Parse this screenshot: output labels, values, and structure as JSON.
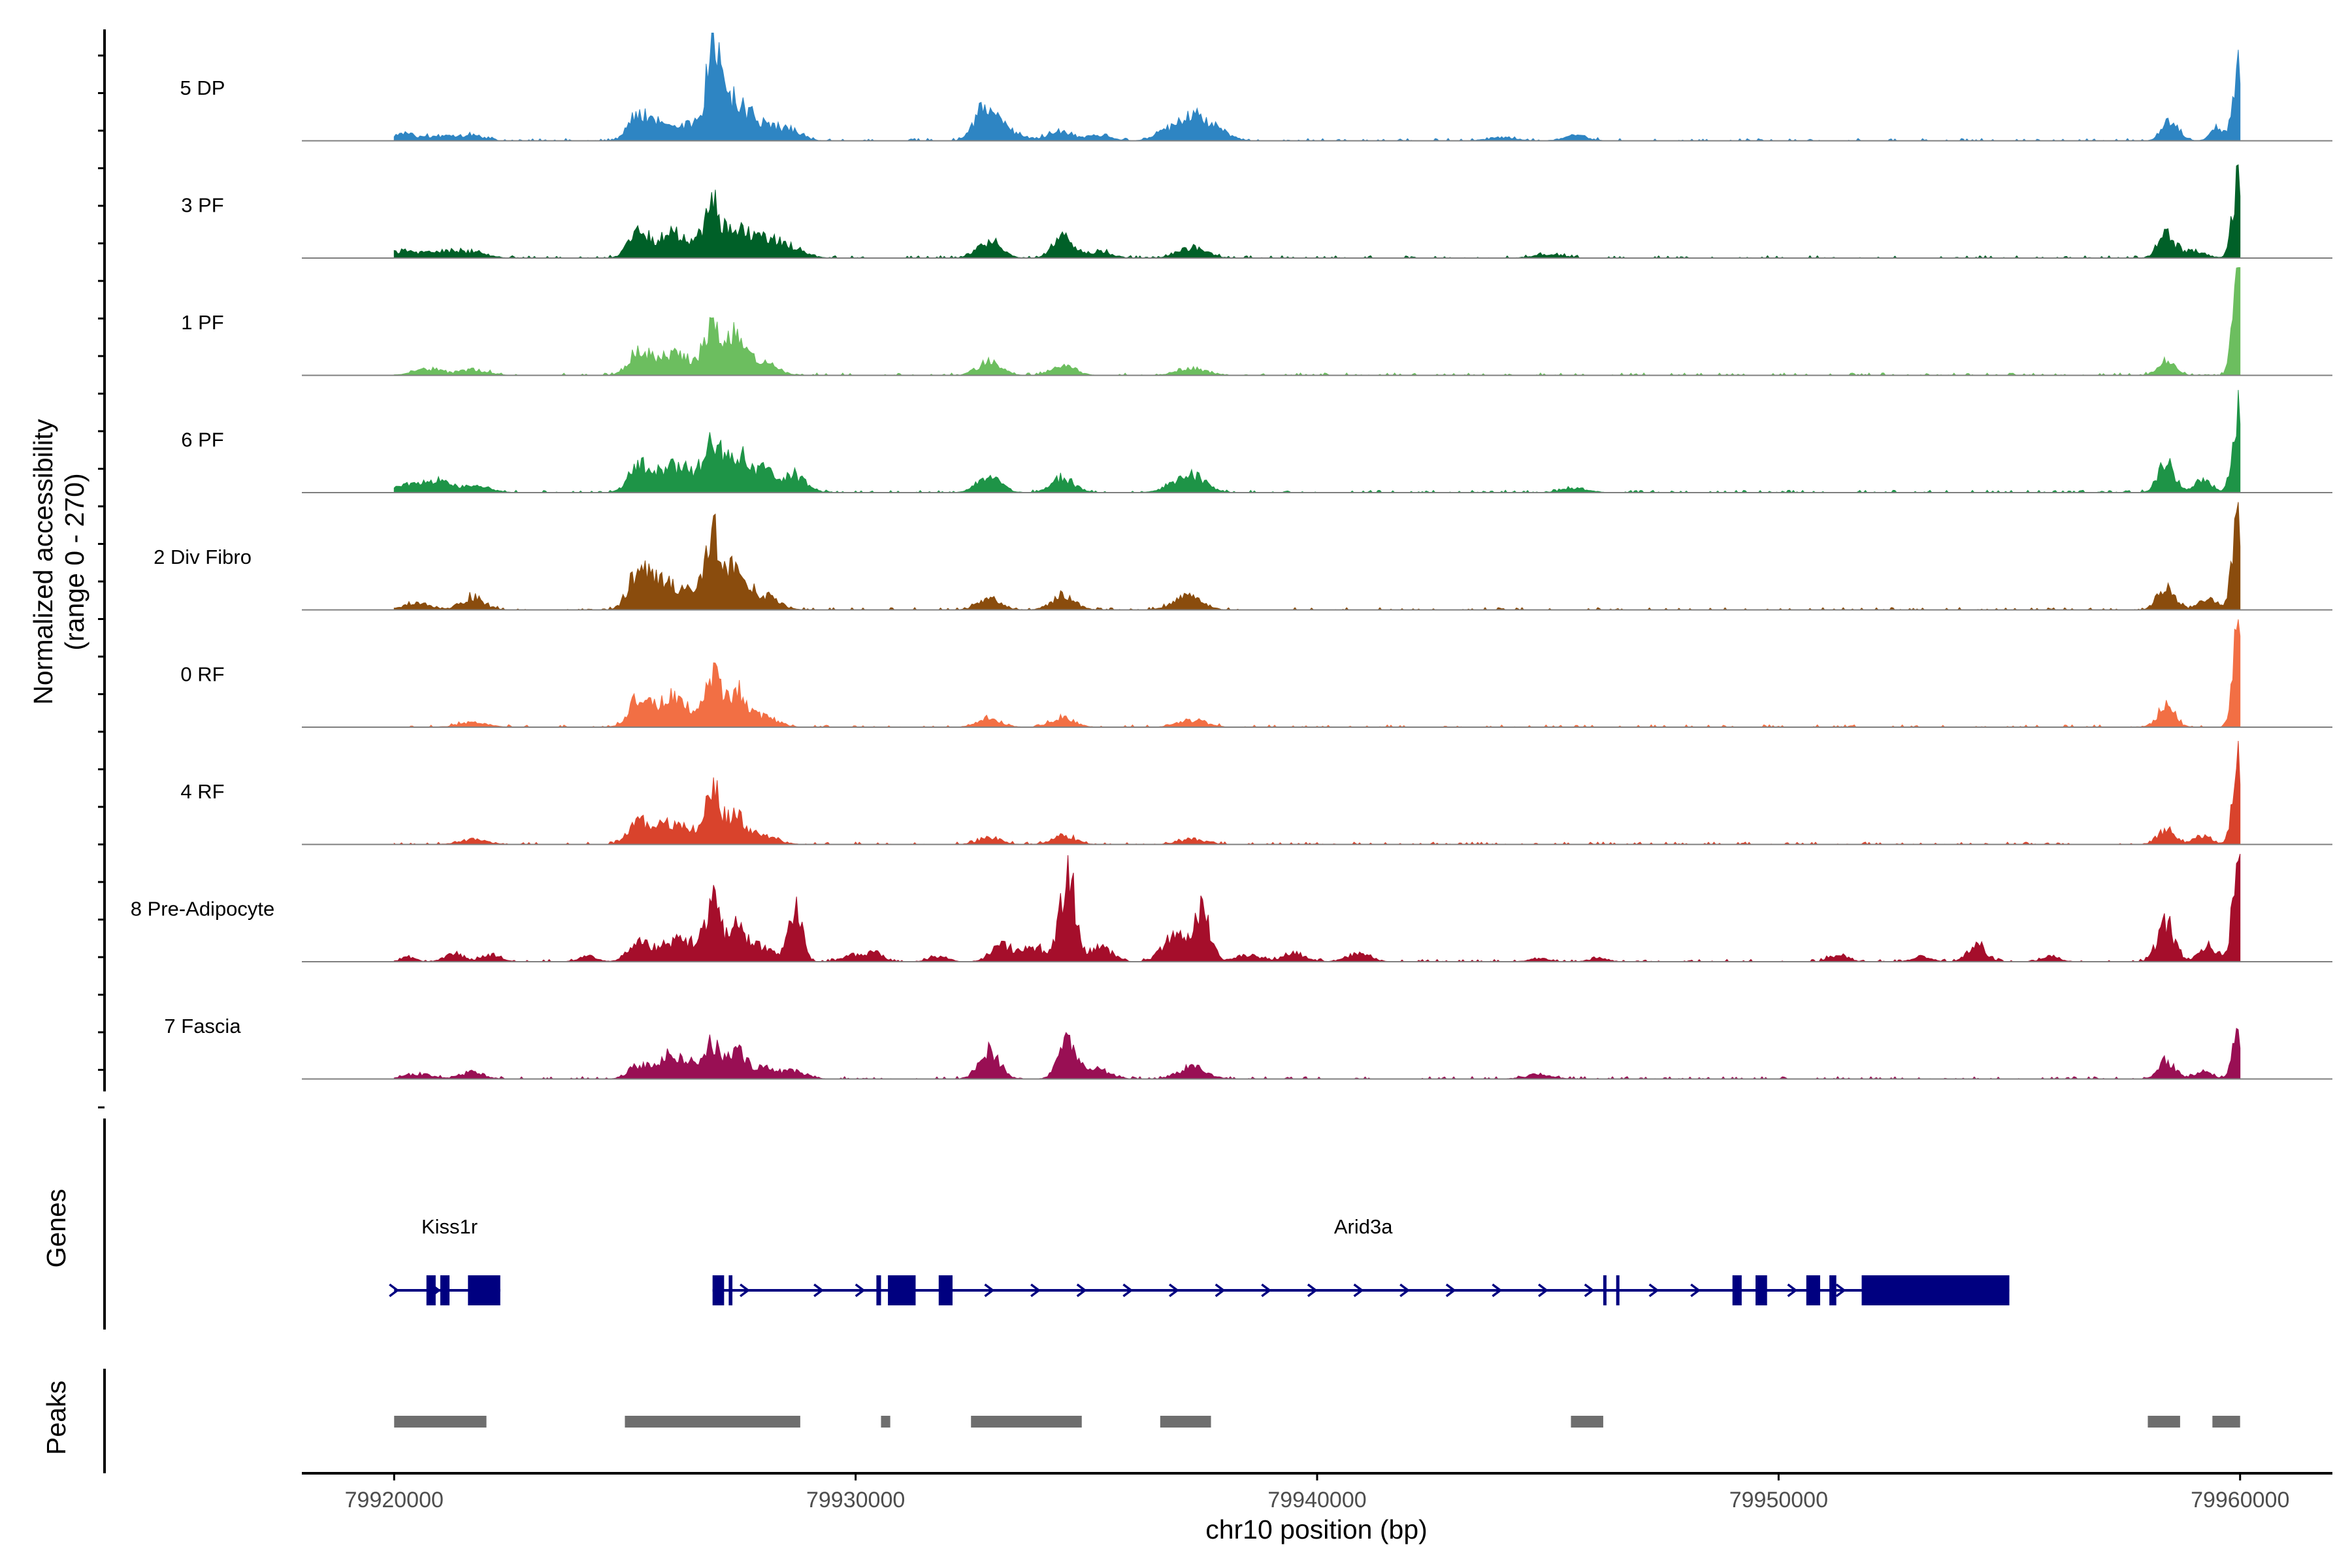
{
  "colors": {
    "axis": "#000000",
    "baseline": "#7f7f7f",
    "gene": "#000080",
    "peak": "#6e6e6e",
    "tick_text": "#4d4d4d"
  },
  "chart_data": {
    "type": "area",
    "title": "",
    "xlabel": "chr10 position (bp)",
    "ylabel": "Normalized accessibility",
    "ylabel_range": "(range 0 - 270)",
    "xlim": [
      79918000,
      79962000
    ],
    "ylim": [
      0,
      270
    ],
    "x_ticks": [
      79920000,
      79930000,
      79940000,
      79950000,
      79960000
    ],
    "x_tick_labels": [
      "79920000",
      "79930000",
      "79940000",
      "79950000",
      "79960000"
    ],
    "grid": false,
    "tracks": [
      {
        "name": "5 DP",
        "color": "#2e85c3",
        "peaks": [
          [
            79920200,
            20,
            250
          ],
          [
            79921000,
            14,
            300
          ],
          [
            79921700,
            16,
            250
          ],
          [
            79925300,
            74,
            220
          ],
          [
            79925800,
            40,
            250
          ],
          [
            79926400,
            42,
            300
          ],
          [
            79926900,
            180,
            150
          ],
          [
            79927100,
            120,
            220
          ],
          [
            79927500,
            70,
            250
          ],
          [
            79928000,
            45,
            300
          ],
          [
            79928600,
            28,
            250
          ],
          [
            79932800,
            92,
            220
          ],
          [
            79933300,
            28,
            300
          ],
          [
            79934400,
            30,
            250
          ],
          [
            79935300,
            18,
            250
          ],
          [
            79936900,
            38,
            300
          ],
          [
            79937400,
            60,
            250
          ],
          [
            79937900,
            24,
            250
          ],
          [
            79944000,
            10,
            300
          ],
          [
            79945600,
            16,
            250
          ],
          [
            79958500,
            58,
            180
          ],
          [
            79959500,
            35,
            150
          ],
          [
            79959900,
            140,
            100
          ],
          [
            79960000,
            135,
            80
          ]
        ]
      },
      {
        "name": "3 PF",
        "color": "#006028",
        "peaks": [
          [
            79920200,
            20,
            300
          ],
          [
            79921000,
            18,
            300
          ],
          [
            79921700,
            16,
            300
          ],
          [
            79925300,
            70,
            220
          ],
          [
            79925900,
            55,
            250
          ],
          [
            79926400,
            50,
            300
          ],
          [
            79926900,
            145,
            160
          ],
          [
            79927400,
            90,
            220
          ],
          [
            79928000,
            55,
            300
          ],
          [
            79928600,
            28,
            300
          ],
          [
            79932900,
            45,
            250
          ],
          [
            79934500,
            65,
            220
          ],
          [
            79935300,
            20,
            250
          ],
          [
            79937300,
            30,
            300
          ],
          [
            79945000,
            12,
            300
          ],
          [
            79958400,
            68,
            180
          ],
          [
            79959000,
            20,
            250
          ],
          [
            79959900,
            145,
            100
          ],
          [
            79960000,
            140,
            80
          ]
        ]
      },
      {
        "name": "1 PF",
        "color": "#6cbe5f",
        "peaks": [
          [
            79920700,
            20,
            300
          ],
          [
            79921700,
            16,
            300
          ],
          [
            79925300,
            70,
            220
          ],
          [
            79925900,
            50,
            250
          ],
          [
            79926400,
            40,
            300
          ],
          [
            79926900,
            155,
            160
          ],
          [
            79927400,
            120,
            220
          ],
          [
            79928000,
            35,
            300
          ],
          [
            79932900,
            40,
            250
          ],
          [
            79934500,
            30,
            250
          ],
          [
            79937300,
            20,
            300
          ],
          [
            79958400,
            45,
            180
          ],
          [
            79959900,
            185,
            100
          ],
          [
            79960000,
            180,
            80
          ]
        ]
      },
      {
        "name": "6 PF",
        "color": "#1e9447",
        "peaks": [
          [
            79920300,
            25,
            300
          ],
          [
            79921000,
            30,
            300
          ],
          [
            79921800,
            18,
            300
          ],
          [
            79925300,
            75,
            220
          ],
          [
            79925900,
            60,
            250
          ],
          [
            79926400,
            55,
            300
          ],
          [
            79926900,
            140,
            160
          ],
          [
            79927400,
            110,
            220
          ],
          [
            79928000,
            60,
            300
          ],
          [
            79928700,
            45,
            250
          ],
          [
            79932900,
            50,
            250
          ],
          [
            79934500,
            40,
            250
          ],
          [
            79937000,
            30,
            300
          ],
          [
            79937400,
            35,
            250
          ],
          [
            79945600,
            12,
            300
          ],
          [
            79958400,
            85,
            180
          ],
          [
            79959200,
            35,
            200
          ],
          [
            79959900,
            160,
            100
          ],
          [
            79960000,
            150,
            80
          ]
        ]
      },
      {
        "name": "2 Div Fibro",
        "color": "#8a4c0d",
        "peaks": [
          [
            79920500,
            18,
            300
          ],
          [
            79921700,
            35,
            250
          ],
          [
            79925300,
            110,
            220
          ],
          [
            79925800,
            70,
            250
          ],
          [
            79926400,
            50,
            300
          ],
          [
            79926900,
            200,
            160
          ],
          [
            79927400,
            120,
            220
          ],
          [
            79928000,
            40,
            300
          ],
          [
            79932900,
            30,
            250
          ],
          [
            79934500,
            40,
            250
          ],
          [
            79937200,
            40,
            300
          ],
          [
            79958400,
            75,
            180
          ],
          [
            79959300,
            30,
            200
          ],
          [
            79959900,
            175,
            100
          ],
          [
            79960000,
            170,
            80
          ]
        ]
      },
      {
        "name": "0 RF",
        "color": "#f26f44",
        "peaks": [
          [
            79921700,
            15,
            300
          ],
          [
            79925300,
            80,
            220
          ],
          [
            79925900,
            70,
            250
          ],
          [
            79926400,
            45,
            300
          ],
          [
            79926900,
            150,
            160
          ],
          [
            79927400,
            100,
            220
          ],
          [
            79928000,
            30,
            300
          ],
          [
            79932900,
            25,
            250
          ],
          [
            79934500,
            30,
            250
          ],
          [
            79937300,
            20,
            300
          ],
          [
            79958400,
            65,
            180
          ],
          [
            79959900,
            170,
            100
          ],
          [
            79960000,
            165,
            80
          ]
        ]
      },
      {
        "name": "4 RF",
        "color": "#d9432c",
        "peaks": [
          [
            79921700,
            14,
            300
          ],
          [
            79925300,
            65,
            220
          ],
          [
            79925900,
            50,
            250
          ],
          [
            79926400,
            35,
            300
          ],
          [
            79926900,
            150,
            160
          ],
          [
            79927400,
            80,
            220
          ],
          [
            79928000,
            25,
            300
          ],
          [
            79932900,
            20,
            250
          ],
          [
            79934500,
            25,
            250
          ],
          [
            79937300,
            15,
            300
          ],
          [
            79958400,
            45,
            180
          ],
          [
            79959200,
            22,
            200
          ],
          [
            79959900,
            140,
            100
          ],
          [
            79960000,
            135,
            80
          ]
        ]
      },
      {
        "name": "8 Pre-Adipocyte",
        "color": "#a50e2b",
        "peaks": [
          [
            79920300,
            15,
            150
          ],
          [
            79921300,
            25,
            200
          ],
          [
            79922100,
            20,
            200
          ],
          [
            79924200,
            15,
            200
          ],
          [
            79925300,
            55,
            220
          ],
          [
            79925900,
            40,
            250
          ],
          [
            79926400,
            50,
            300
          ],
          [
            79926900,
            150,
            160
          ],
          [
            79927400,
            90,
            220
          ],
          [
            79928000,
            40,
            300
          ],
          [
            79928700,
            170,
            140
          ],
          [
            79929900,
            20,
            200
          ],
          [
            79930400,
            25,
            200
          ],
          [
            79931800,
            15,
            200
          ],
          [
            79933200,
            45,
            250
          ],
          [
            79933900,
            40,
            250
          ],
          [
            79934600,
            255,
            160
          ],
          [
            79935300,
            40,
            250
          ],
          [
            79936900,
            75,
            250
          ],
          [
            79937500,
            155,
            180
          ],
          [
            79938500,
            20,
            250
          ],
          [
            79939500,
            25,
            250
          ],
          [
            79940900,
            25,
            250
          ],
          [
            79944800,
            10,
            200
          ],
          [
            79946100,
            10,
            200
          ],
          [
            79951300,
            20,
            200
          ],
          [
            79953100,
            15,
            200
          ],
          [
            79954300,
            45,
            200
          ],
          [
            79955900,
            15,
            200
          ],
          [
            79958400,
            110,
            180
          ],
          [
            79959300,
            45,
            200
          ],
          [
            79959900,
            200,
            100
          ],
          [
            79960000,
            195,
            80
          ]
        ]
      },
      {
        "name": "7 Fascia",
        "color": "#990f54",
        "peaks": [
          [
            79920500,
            15,
            300
          ],
          [
            79921700,
            20,
            250
          ],
          [
            79925300,
            40,
            220
          ],
          [
            79925900,
            55,
            250
          ],
          [
            79926400,
            45,
            300
          ],
          [
            79926900,
            90,
            160
          ],
          [
            79927400,
            70,
            220
          ],
          [
            79928000,
            30,
            300
          ],
          [
            79928700,
            20,
            250
          ],
          [
            79932900,
            85,
            220
          ],
          [
            79934600,
            105,
            200
          ],
          [
            79935300,
            25,
            250
          ],
          [
            79937300,
            35,
            300
          ],
          [
            79944800,
            12,
            300
          ],
          [
            79958400,
            50,
            180
          ],
          [
            79959200,
            20,
            200
          ],
          [
            79959900,
            85,
            100
          ],
          [
            79960000,
            80,
            80
          ]
        ]
      }
    ],
    "genes": [
      {
        "name": "Kiss1r",
        "start": 79920000,
        "end": 79922300,
        "exons": [
          [
            79920700,
            79920900
          ],
          [
            79921000,
            79921200
          ],
          [
            79921600,
            79922300
          ]
        ],
        "arrows": [
          79920000,
          79920900
        ]
      },
      {
        "name": "Arid3a",
        "start": 79926900,
        "end": 79955000,
        "exons": [
          [
            79926900,
            79927150
          ],
          [
            79927250,
            79927330
          ],
          [
            79930450,
            79930550
          ],
          [
            79930700,
            79931300
          ],
          [
            79931800,
            79932100
          ],
          [
            79946200,
            79946260
          ],
          [
            79946480,
            79946540
          ],
          [
            79949000,
            79949200
          ],
          [
            79949500,
            79949750
          ],
          [
            79950600,
            79950900
          ],
          [
            79951100,
            79951250
          ],
          [
            79951800,
            79955000
          ]
        ],
        "arrows": [
          79927600,
          79929200,
          79930100,
          79932900,
          79933900,
          79934900,
          79935900,
          79936900,
          79937900,
          79938900,
          79939900,
          79940900,
          79941900,
          79942900,
          79943900,
          79944900,
          79945900,
          79947300,
          79948200,
          79950300,
          79951350
        ]
      }
    ],
    "peak_regions": [
      [
        79920000,
        79922000
      ],
      [
        79925000,
        79928800
      ],
      [
        79930550,
        79930750
      ],
      [
        79932500,
        79934900
      ],
      [
        79936600,
        79937700
      ],
      [
        79945500,
        79946200
      ],
      [
        79958000,
        79958700
      ],
      [
        79959400,
        79960000
      ]
    ],
    "panel_labels": {
      "genes": "Genes",
      "peaks": "Peaks"
    }
  }
}
